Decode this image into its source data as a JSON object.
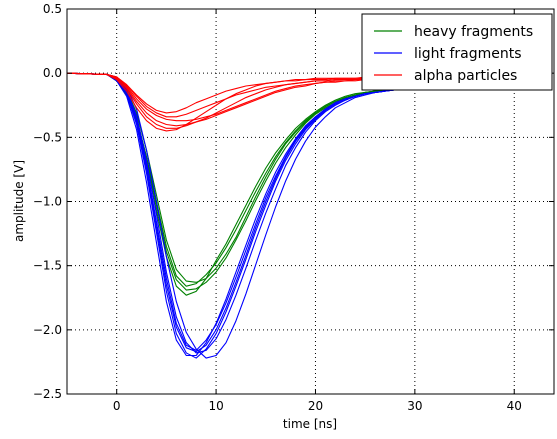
{
  "chart_data": {
    "type": "line",
    "title": "",
    "xlabel": "time [ns]",
    "ylabel": "amplitude [V]",
    "xlim": [
      -5,
      44
    ],
    "ylim": [
      -2.5,
      0.5
    ],
    "xticks": [
      0,
      10,
      20,
      30,
      40
    ],
    "xtick_labels": [
      "0",
      "10",
      "20",
      "30",
      "40"
    ],
    "yticks": [
      0.5,
      0.0,
      -0.5,
      -1.0,
      -1.5,
      -2.0,
      -2.5
    ],
    "ytick_labels": [
      "0.5",
      "0.0",
      "−0.5",
      "−1.0",
      "−1.5",
      "−2.0",
      "−2.5"
    ],
    "grid": true,
    "legend_position": "top-right",
    "legend": [
      "heavy fragments",
      "light fragments",
      "alpha particles"
    ],
    "colors": {
      "heavy fragments": "#008000",
      "light fragments": "#0000ff",
      "alpha particles": "#ff0000"
    },
    "series": [
      {
        "name": "heavy fragments",
        "group": 0,
        "x": [
          -5,
          -1,
          0,
          1,
          2,
          3,
          4,
          5,
          6,
          7,
          8,
          9,
          10,
          11,
          12,
          13,
          14,
          15,
          16,
          17,
          18,
          19,
          20,
          21,
          22,
          23,
          24,
          25,
          26,
          27,
          28,
          29,
          30
        ],
        "y": [
          0,
          -0.01,
          -0.05,
          -0.15,
          -0.35,
          -0.65,
          -1.0,
          -1.35,
          -1.58,
          -1.66,
          -1.64,
          -1.57,
          -1.48,
          -1.36,
          -1.22,
          -1.07,
          -0.92,
          -0.78,
          -0.65,
          -0.54,
          -0.45,
          -0.37,
          -0.31,
          -0.26,
          -0.22,
          -0.19,
          -0.17,
          -0.15,
          -0.14,
          -0.13,
          -0.12,
          -0.11,
          -0.11
        ]
      },
      {
        "name": "heavy fragments",
        "group": 0,
        "x": [
          -5,
          -1,
          0,
          1,
          2,
          3,
          4,
          5,
          6,
          7,
          8,
          9,
          10,
          11,
          12,
          13,
          14,
          15,
          16,
          17,
          18,
          19,
          20,
          21,
          22,
          23,
          24,
          25,
          26,
          27,
          28,
          29,
          30
        ],
        "y": [
          0,
          -0.01,
          -0.06,
          -0.17,
          -0.38,
          -0.7,
          -1.07,
          -1.43,
          -1.66,
          -1.73,
          -1.7,
          -1.6,
          -1.46,
          -1.33,
          -1.18,
          -1.03,
          -0.88,
          -0.74,
          -0.62,
          -0.52,
          -0.43,
          -0.36,
          -0.3,
          -0.25,
          -0.21,
          -0.18,
          -0.16,
          -0.15,
          -0.14,
          -0.13,
          -0.12,
          -0.11,
          -0.11
        ]
      },
      {
        "name": "heavy fragments",
        "group": 0,
        "x": [
          -5,
          -1,
          0,
          1,
          2,
          3,
          4,
          5,
          6,
          7,
          8,
          9,
          10,
          11,
          12,
          13,
          14,
          15,
          16,
          17,
          18,
          19,
          20,
          21,
          22,
          23,
          24,
          25,
          26,
          27,
          28,
          29,
          30
        ],
        "y": [
          0,
          -0.01,
          -0.04,
          -0.13,
          -0.31,
          -0.6,
          -0.95,
          -1.3,
          -1.53,
          -1.62,
          -1.63,
          -1.6,
          -1.52,
          -1.41,
          -1.28,
          -1.12,
          -0.96,
          -0.81,
          -0.67,
          -0.55,
          -0.46,
          -0.38,
          -0.31,
          -0.26,
          -0.22,
          -0.19,
          -0.17,
          -0.15,
          -0.14,
          -0.13,
          -0.12,
          -0.11,
          -0.11
        ]
      },
      {
        "name": "heavy fragments",
        "group": 0,
        "x": [
          -5,
          -1,
          0,
          1,
          2,
          3,
          4,
          5,
          6,
          7,
          8,
          9,
          10,
          11,
          12,
          13,
          14,
          15,
          16,
          17,
          18,
          19,
          20,
          21,
          22,
          23,
          24,
          25,
          26,
          27,
          28,
          29,
          30
        ],
        "y": [
          0,
          -0.01,
          -0.05,
          -0.16,
          -0.36,
          -0.67,
          -1.03,
          -1.39,
          -1.61,
          -1.69,
          -1.68,
          -1.63,
          -1.55,
          -1.44,
          -1.3,
          -1.15,
          -0.99,
          -0.84,
          -0.7,
          -0.58,
          -0.48,
          -0.39,
          -0.32,
          -0.27,
          -0.23,
          -0.19,
          -0.17,
          -0.15,
          -0.14,
          -0.13,
          -0.12,
          -0.11,
          -0.11
        ]
      },
      {
        "name": "light fragments",
        "group": 1,
        "x": [
          -5,
          -1,
          0,
          1,
          2,
          3,
          4,
          5,
          6,
          7,
          8,
          9,
          10,
          11,
          12,
          13,
          14,
          15,
          16,
          17,
          18,
          19,
          20,
          21,
          22,
          23,
          24,
          25,
          26,
          27,
          28,
          29,
          30
        ],
        "y": [
          0,
          -0.01,
          -0.05,
          -0.15,
          -0.38,
          -0.75,
          -1.2,
          -1.65,
          -1.98,
          -2.14,
          -2.17,
          -2.12,
          -2.0,
          -1.83,
          -1.63,
          -1.42,
          -1.2,
          -1.0,
          -0.82,
          -0.66,
          -0.53,
          -0.43,
          -0.35,
          -0.29,
          -0.24,
          -0.21,
          -0.18,
          -0.16,
          -0.15,
          -0.14,
          -0.13,
          -0.12,
          -0.12
        ]
      },
      {
        "name": "light fragments",
        "group": 1,
        "x": [
          -5,
          -1,
          0,
          1,
          2,
          3,
          4,
          5,
          6,
          7,
          8,
          9,
          10,
          11,
          12,
          13,
          14,
          15,
          16,
          17,
          18,
          19,
          20,
          21,
          22,
          23,
          24,
          25,
          26,
          27,
          28,
          29,
          30
        ],
        "y": [
          0,
          -0.01,
          -0.06,
          -0.18,
          -0.44,
          -0.85,
          -1.32,
          -1.78,
          -2.08,
          -2.2,
          -2.2,
          -2.1,
          -1.95,
          -1.76,
          -1.55,
          -1.34,
          -1.13,
          -0.94,
          -0.77,
          -0.63,
          -0.51,
          -0.41,
          -0.34,
          -0.28,
          -0.23,
          -0.2,
          -0.18,
          -0.16,
          -0.15,
          -0.14,
          -0.13,
          -0.12,
          -0.12
        ]
      },
      {
        "name": "light fragments",
        "group": 1,
        "x": [
          -5,
          -1,
          0,
          1,
          2,
          3,
          4,
          5,
          6,
          7,
          8,
          9,
          10,
          11,
          12,
          13,
          14,
          15,
          16,
          17,
          18,
          19,
          20,
          21,
          22,
          23,
          24,
          25,
          26,
          27,
          28,
          29,
          30
        ],
        "y": [
          0,
          -0.01,
          -0.04,
          -0.13,
          -0.33,
          -0.68,
          -1.1,
          -1.55,
          -1.9,
          -2.1,
          -2.18,
          -2.16,
          -2.07,
          -1.92,
          -1.73,
          -1.52,
          -1.3,
          -1.09,
          -0.9,
          -0.72,
          -0.58,
          -0.46,
          -0.37,
          -0.3,
          -0.25,
          -0.21,
          -0.18,
          -0.16,
          -0.15,
          -0.14,
          -0.13,
          -0.12,
          -0.12
        ]
      },
      {
        "name": "light fragments",
        "group": 1,
        "x": [
          -5,
          -1,
          0,
          1,
          2,
          3,
          4,
          5,
          6,
          7,
          8,
          9,
          10,
          11,
          12,
          13,
          14,
          15,
          16,
          17,
          18,
          19,
          20,
          21,
          22,
          23,
          24,
          25,
          26,
          27,
          28,
          29,
          30
        ],
        "y": [
          0,
          -0.01,
          -0.05,
          -0.16,
          -0.4,
          -0.78,
          -1.24,
          -1.7,
          -2.03,
          -2.18,
          -2.22,
          -2.15,
          -2.03,
          -1.86,
          -1.66,
          -1.45,
          -1.23,
          -1.03,
          -0.84,
          -0.68,
          -0.55,
          -0.44,
          -0.36,
          -0.29,
          -0.24,
          -0.21,
          -0.18,
          -0.16,
          -0.15,
          -0.14,
          -0.13,
          -0.12,
          -0.12
        ]
      },
      {
        "name": "light fragments",
        "group": 1,
        "x": [
          -5,
          -1,
          0,
          1,
          2,
          3,
          4,
          5,
          6,
          7,
          8,
          9,
          10,
          11,
          12,
          13,
          14,
          15,
          16,
          17,
          18,
          19,
          20,
          21,
          22,
          23,
          24,
          25,
          26,
          27,
          28,
          29,
          30
        ],
        "y": [
          0,
          -0.01,
          -0.03,
          -0.11,
          -0.28,
          -0.6,
          -1.0,
          -1.43,
          -1.78,
          -2.02,
          -2.15,
          -2.22,
          -2.2,
          -2.1,
          -1.93,
          -1.72,
          -1.49,
          -1.26,
          -1.04,
          -0.84,
          -0.67,
          -0.53,
          -0.42,
          -0.34,
          -0.27,
          -0.23,
          -0.19,
          -0.17,
          -0.15,
          -0.14,
          -0.13,
          -0.12,
          -0.12
        ]
      },
      {
        "name": "light fragments",
        "group": 1,
        "x": [
          -5,
          -1,
          0,
          1,
          2,
          3,
          4,
          5,
          6,
          7,
          8,
          9,
          10,
          11,
          12,
          13,
          14,
          15,
          16,
          17,
          18,
          19,
          20,
          21,
          22,
          23,
          24,
          25,
          26,
          27,
          28,
          29,
          30
        ],
        "y": [
          0,
          -0.01,
          -0.04,
          -0.14,
          -0.35,
          -0.72,
          -1.16,
          -1.6,
          -1.95,
          -2.12,
          -2.16,
          -2.08,
          -1.96,
          -1.79,
          -1.59,
          -1.38,
          -1.17,
          -0.97,
          -0.8,
          -0.65,
          -0.52,
          -0.42,
          -0.34,
          -0.28,
          -0.23,
          -0.2,
          -0.18,
          -0.16,
          -0.15,
          -0.14,
          -0.13,
          -0.12,
          -0.12
        ]
      },
      {
        "name": "alpha particles",
        "group": 2,
        "x": [
          -5,
          -1,
          0,
          1,
          2,
          3,
          4,
          5,
          6,
          7,
          8,
          9,
          10,
          11,
          12,
          13,
          14,
          15,
          16,
          17,
          18,
          19,
          20,
          21,
          22,
          23,
          24,
          25,
          26,
          27,
          28,
          29,
          30
        ],
        "y": [
          0,
          -0.01,
          -0.04,
          -0.12,
          -0.24,
          -0.34,
          -0.4,
          -0.43,
          -0.43,
          -0.41,
          -0.38,
          -0.35,
          -0.31,
          -0.27,
          -0.23,
          -0.19,
          -0.16,
          -0.13,
          -0.11,
          -0.09,
          -0.08,
          -0.07,
          -0.06,
          -0.06,
          -0.05,
          -0.05,
          -0.05,
          -0.04,
          -0.04,
          -0.04,
          -0.04,
          -0.04,
          -0.04
        ]
      },
      {
        "name": "alpha particles",
        "group": 2,
        "x": [
          -5,
          -1,
          0,
          1,
          2,
          3,
          4,
          5,
          6,
          7,
          8,
          9,
          10,
          11,
          12,
          13,
          14,
          15,
          16,
          17,
          18,
          19,
          20,
          21,
          22,
          23,
          24,
          25,
          26,
          27,
          28,
          29,
          30
        ],
        "y": [
          0,
          -0.01,
          -0.05,
          -0.14,
          -0.27,
          -0.37,
          -0.43,
          -0.45,
          -0.44,
          -0.4,
          -0.35,
          -0.3,
          -0.25,
          -0.2,
          -0.16,
          -0.13,
          -0.1,
          -0.08,
          -0.07,
          -0.06,
          -0.05,
          -0.05,
          -0.04,
          -0.04,
          -0.04,
          -0.04,
          -0.04,
          -0.03,
          -0.03,
          -0.03,
          -0.03,
          -0.03,
          -0.03
        ]
      },
      {
        "name": "alpha particles",
        "group": 2,
        "x": [
          -5,
          -1,
          0,
          1,
          2,
          3,
          4,
          5,
          6,
          7,
          8,
          9,
          10,
          11,
          12,
          13,
          14,
          15,
          16,
          17,
          18,
          19,
          20,
          21,
          22,
          23,
          24,
          25,
          26,
          27,
          28,
          29,
          30
        ],
        "y": [
          0,
          -0.01,
          -0.03,
          -0.09,
          -0.18,
          -0.26,
          -0.31,
          -0.34,
          -0.34,
          -0.32,
          -0.29,
          -0.26,
          -0.23,
          -0.2,
          -0.17,
          -0.15,
          -0.13,
          -0.11,
          -0.1,
          -0.09,
          -0.08,
          -0.07,
          -0.06,
          -0.06,
          -0.05,
          -0.05,
          -0.05,
          -0.05,
          -0.05,
          -0.04,
          -0.04,
          -0.04,
          -0.04
        ]
      },
      {
        "name": "alpha particles",
        "group": 2,
        "x": [
          -5,
          -1,
          0,
          1,
          2,
          3,
          4,
          5,
          6,
          7,
          8,
          9,
          10,
          11,
          12,
          13,
          14,
          15,
          16,
          17,
          18,
          19,
          20,
          21,
          22,
          23,
          24,
          25,
          26,
          27,
          28,
          29,
          30
        ],
        "y": [
          0,
          -0.01,
          -0.03,
          -0.1,
          -0.2,
          -0.28,
          -0.33,
          -0.36,
          -0.37,
          -0.37,
          -0.36,
          -0.34,
          -0.32,
          -0.29,
          -0.26,
          -0.23,
          -0.2,
          -0.17,
          -0.14,
          -0.12,
          -0.1,
          -0.09,
          -0.08,
          -0.07,
          -0.06,
          -0.06,
          -0.05,
          -0.05,
          -0.05,
          -0.05,
          -0.04,
          -0.04,
          -0.04
        ]
      },
      {
        "name": "alpha particles",
        "group": 2,
        "x": [
          -5,
          -1,
          0,
          1,
          2,
          3,
          4,
          5,
          6,
          7,
          8,
          9,
          10,
          11,
          12,
          13,
          14,
          15,
          16,
          17,
          18,
          19,
          20,
          21,
          22,
          23,
          24,
          25,
          26,
          27,
          28,
          29,
          30
        ],
        "y": [
          0,
          -0.01,
          -0.03,
          -0.09,
          -0.17,
          -0.24,
          -0.29,
          -0.31,
          -0.3,
          -0.27,
          -0.23,
          -0.2,
          -0.17,
          -0.14,
          -0.12,
          -0.1,
          -0.09,
          -0.08,
          -0.07,
          -0.06,
          -0.06,
          -0.05,
          -0.05,
          -0.05,
          -0.04,
          -0.04,
          -0.04,
          -0.04,
          -0.04,
          -0.03,
          -0.03,
          -0.03,
          -0.03
        ]
      },
      {
        "name": "alpha particles",
        "group": 2,
        "x": [
          -5,
          -1,
          0,
          1,
          2,
          3,
          4,
          5,
          6,
          7,
          8,
          9,
          10,
          11,
          12,
          13,
          14,
          15,
          16,
          17,
          18,
          19,
          20,
          21,
          22,
          23,
          24,
          25,
          26,
          27,
          28,
          29,
          30
        ],
        "y": [
          0,
          -0.01,
          -0.04,
          -0.11,
          -0.22,
          -0.31,
          -0.37,
          -0.4,
          -0.41,
          -0.4,
          -0.38,
          -0.36,
          -0.33,
          -0.3,
          -0.27,
          -0.24,
          -0.21,
          -0.18,
          -0.15,
          -0.13,
          -0.11,
          -0.1,
          -0.08,
          -0.07,
          -0.07,
          -0.06,
          -0.06,
          -0.05,
          -0.05,
          -0.05,
          -0.05,
          -0.05,
          -0.05
        ]
      }
    ]
  }
}
